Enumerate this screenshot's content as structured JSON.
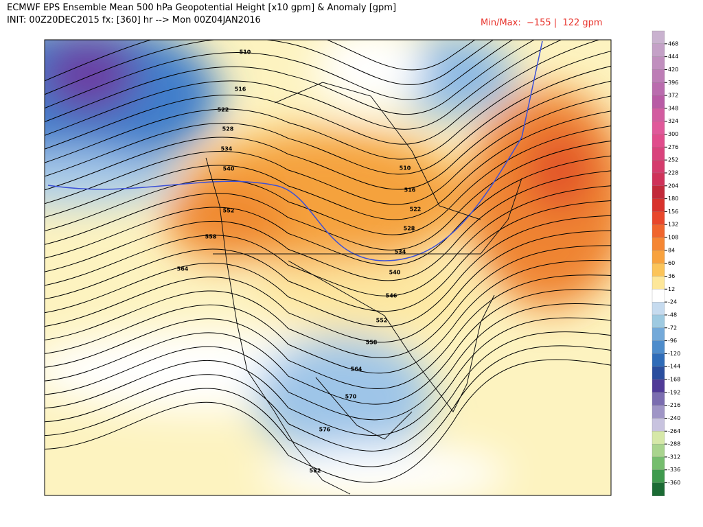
{
  "header": {
    "title": "ECMWF EPS Ensemble Mean 500 hPa Geopotential Height [x10 gpm] & Anomaly [gpm]",
    "init": "INIT: 00Z20DEC2015 fx: [360] hr --> Mon 00Z04JAN2016",
    "minmax": "Min/Max:  −155 |  122 gpm"
  },
  "map": {
    "contour_labels": [
      "510",
      "516",
      "522",
      "528",
      "534",
      "540",
      "552",
      "558",
      "564",
      "510",
      "516",
      "522",
      "528",
      "534",
      "540",
      "546",
      "552",
      "558",
      "564",
      "570",
      "576",
      "582"
    ]
  },
  "colorbar": {
    "labels": [
      "468",
      "444",
      "420",
      "396",
      "372",
      "348",
      "324",
      "300",
      "276",
      "252",
      "228",
      "204",
      "180",
      "156",
      "132",
      "108",
      "84",
      "60",
      "36",
      "12",
      "-24",
      "-48",
      "-72",
      "-96",
      "-120",
      "-144",
      "-168",
      "-192",
      "-216",
      "-240",
      "-264",
      "-288",
      "-312",
      "-336",
      "-360"
    ]
  }
}
